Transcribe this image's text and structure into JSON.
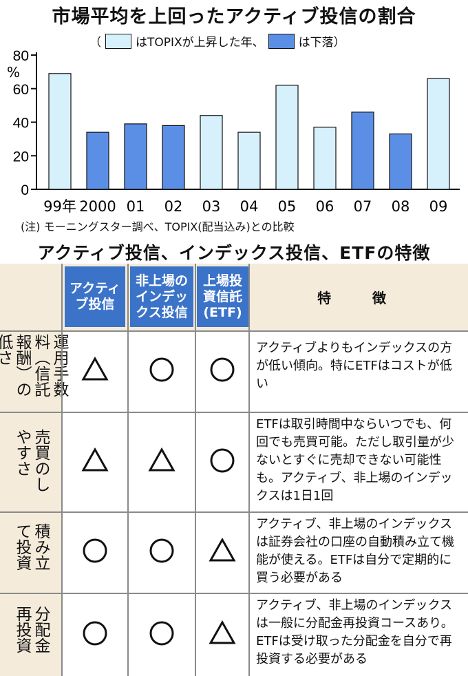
{
  "chart_data": {
    "type": "bar",
    "title": "市場平均を上回ったアクティブ投信の割合",
    "legend": {
      "open": "（",
      "up_label": "はTOPIXが上昇した年、",
      "down_label": "は下落）",
      "up_color": "#d6f1fb",
      "down_color": "#5b8fe6"
    },
    "ylabel": "%",
    "ylim": [
      0,
      80
    ],
    "yticks": [
      "0",
      "20",
      "40",
      "60",
      "80"
    ],
    "categories": [
      "99年",
      "2000",
      "01",
      "02",
      "03",
      "04",
      "05",
      "06",
      "07",
      "08",
      "09"
    ],
    "values": [
      69,
      34,
      39,
      38,
      44,
      34,
      62,
      37,
      46,
      33,
      66
    ],
    "topix": [
      "up",
      "down",
      "down",
      "down",
      "up",
      "up",
      "up",
      "up",
      "down",
      "down",
      "up"
    ],
    "note": "(注) モーニングスター調べ、TOPIX(配当込み)との比較"
  },
  "table": {
    "title": "アクティブ投信、インデックス投信、ETFの特徴",
    "headers": {
      "active": "アクティブ投信",
      "index": "非上場のインデックス投信",
      "etf": "上場投資信託(ETF)",
      "feature": "特　徴"
    },
    "rows": [
      {
        "label": "運用手数料（信託報酬）の低さ",
        "active": "△",
        "index": "○",
        "etf": "○",
        "feature": "アクティブよりもインデックスの方が低い傾向。特にETFはコストが低い"
      },
      {
        "label": "売買のしやすさ",
        "active": "△",
        "index": "△",
        "etf": "○",
        "feature": "ETFは取引時間中ならいつでも、何回でも売買可能。ただし取引量が少ないとすぐに売却できない可能性も。アクティブ、非上場のインデックスは1日1回"
      },
      {
        "label": "積み立て投資",
        "active": "○",
        "index": "○",
        "etf": "△",
        "feature": "アクティブ、非上場のインデックスは証券会社の口座の自動積み立て機能が使える。ETFは自分で定期的に買う必要がある"
      },
      {
        "label": "分配金再投資",
        "active": "○",
        "index": "○",
        "etf": "△",
        "feature": "アクティブ、非上場のインデックスは一般に分配金再投資コースあり。ETFは受け取った分配金を自分で再投資する必要がある"
      }
    ]
  }
}
